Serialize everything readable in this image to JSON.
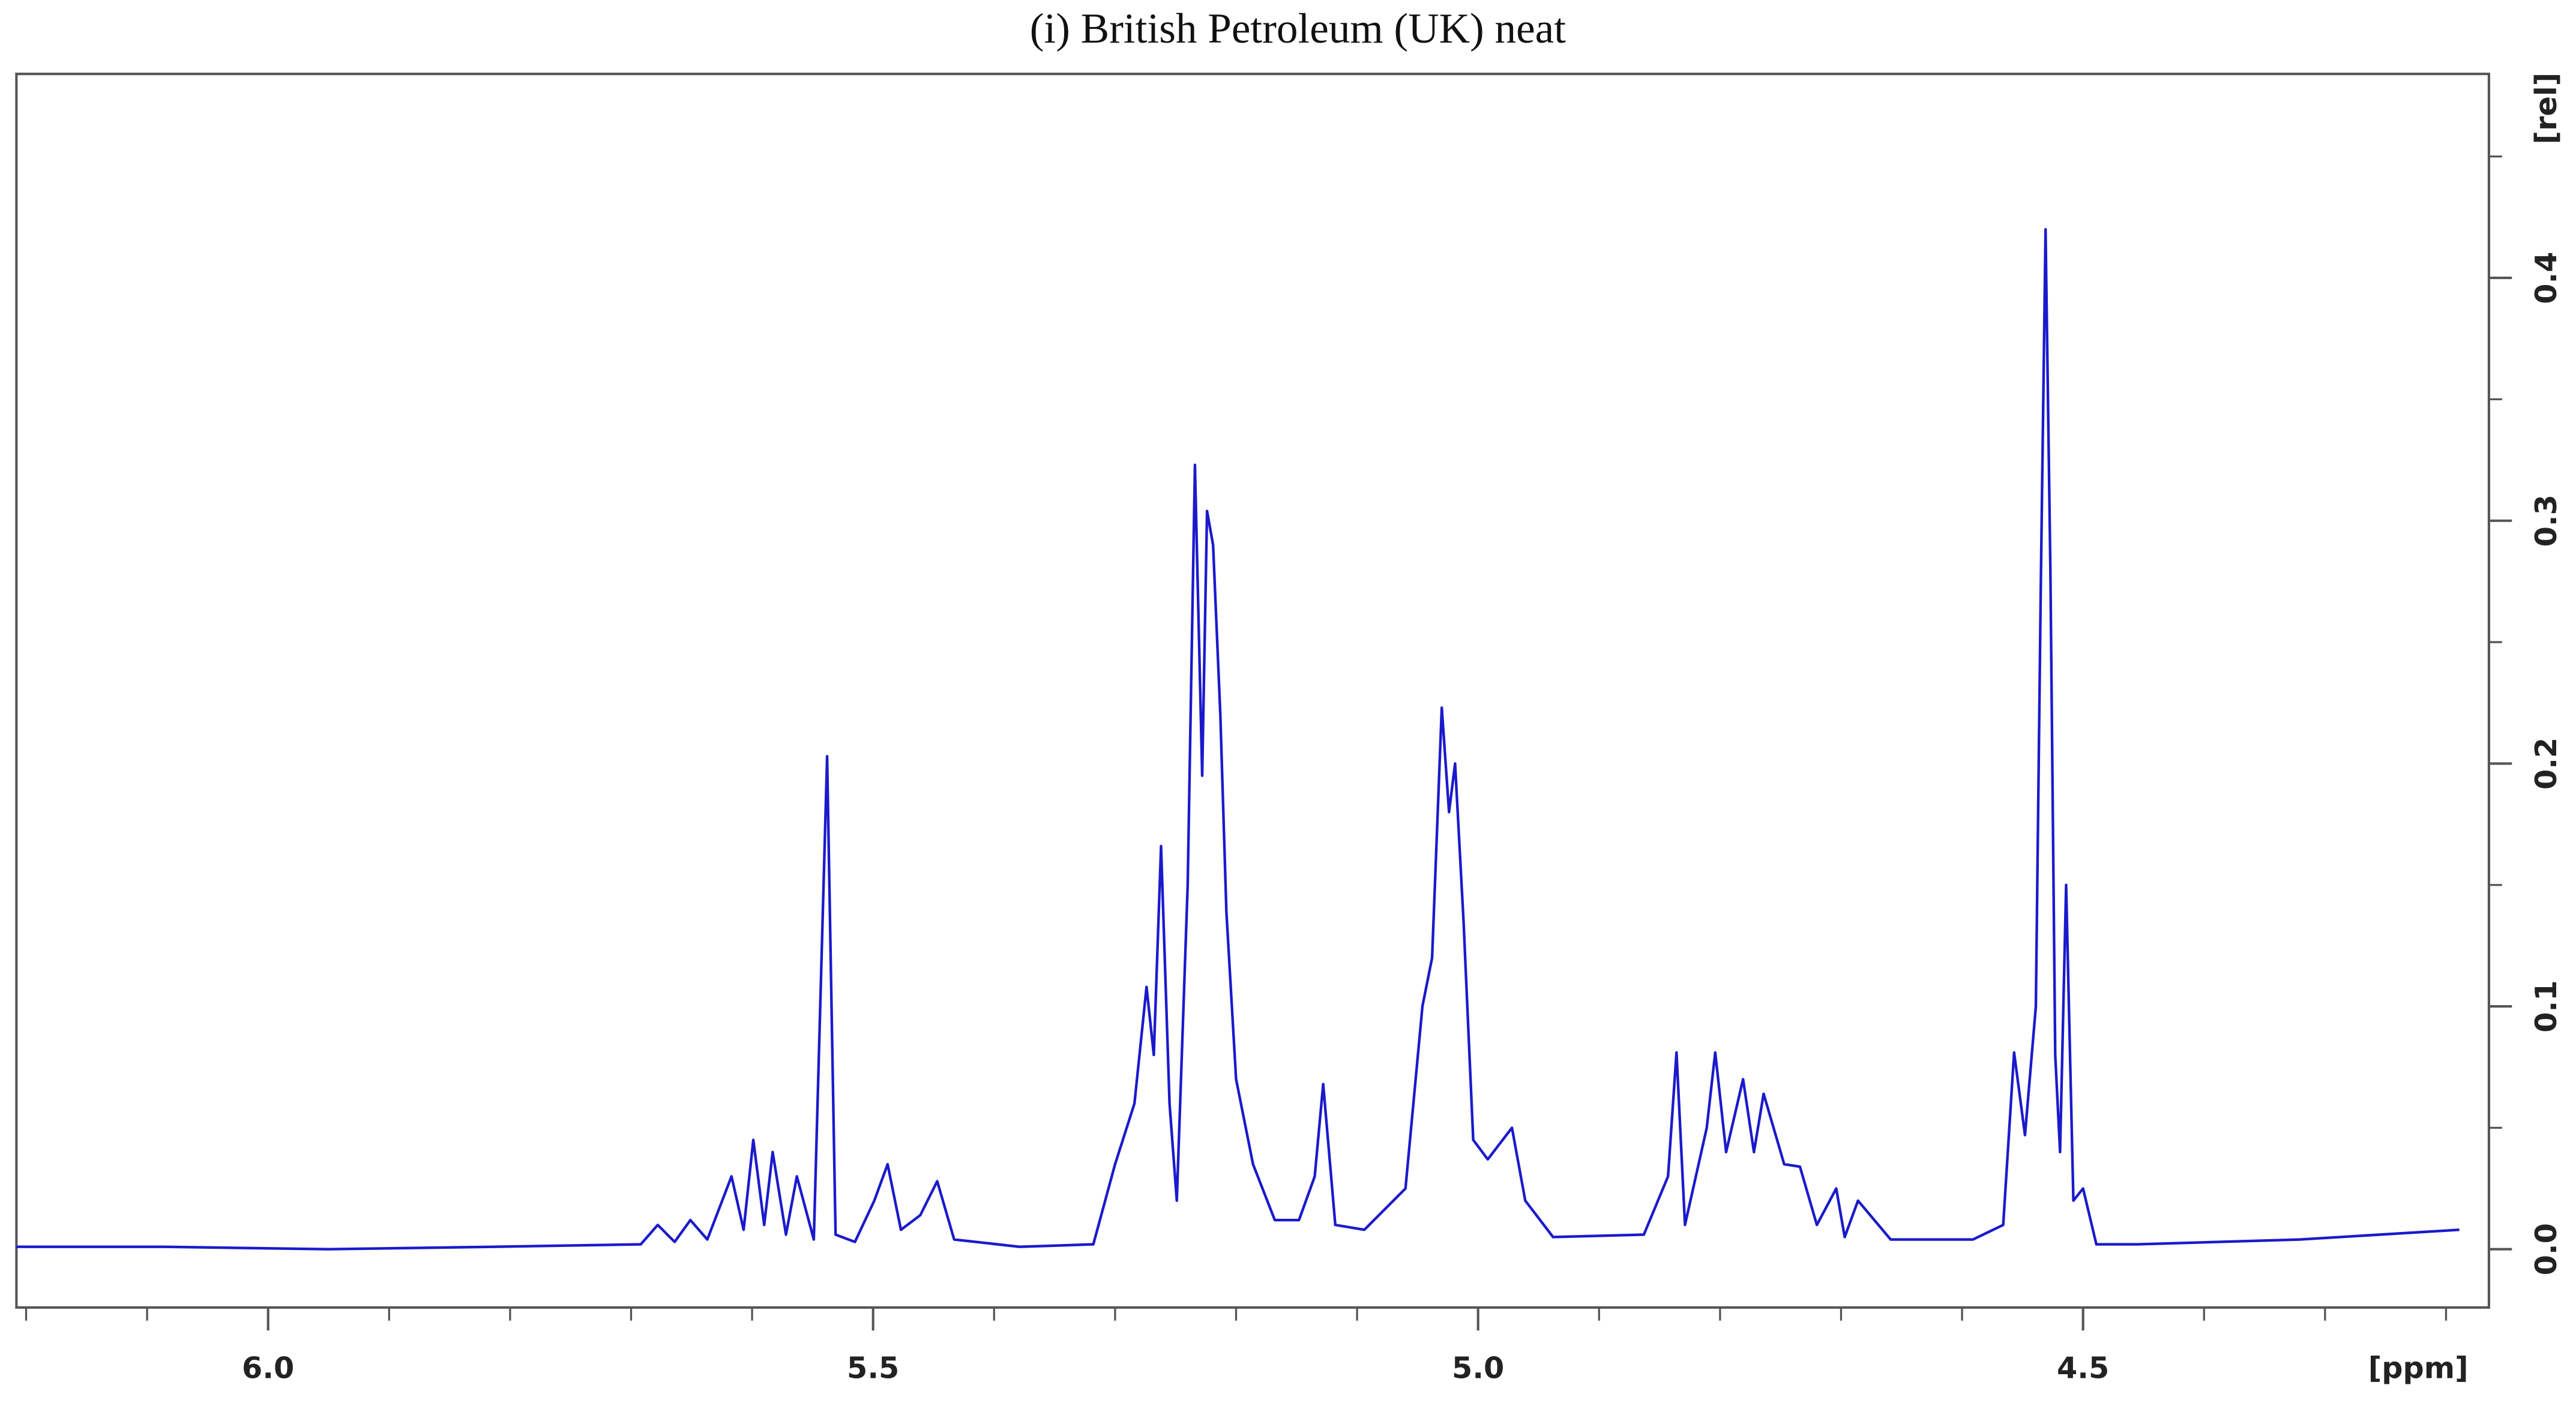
{
  "chart_data": {
    "type": "line",
    "title": "(i) British Petroleum (UK) neat",
    "xlabel": "[ppm]",
    "ylabel": "[rel]",
    "color": "#1a1acc",
    "reverse_x": true,
    "y_axis_side": "right",
    "xlim": [
      6.208,
      4.189
    ],
    "ylim": [
      -0.024,
      0.484
    ],
    "xticks": [
      {
        "value": 6,
        "label": "6.0"
      },
      5.5,
      {
        "value": 5,
        "label": "5.0"
      },
      4.5
    ],
    "xminorticks": [
      6.2,
      6.1,
      5.9,
      5.8,
      5.7,
      5.6,
      5.4,
      5.3,
      5.2,
      5.1,
      4.9,
      4.8,
      4.7,
      4.6,
      4.4,
      4.3,
      4.2
    ],
    "yticks": [
      {
        "value": 0,
        "label": "0.0"
      },
      0.1,
      0.2,
      0.3,
      0.4
    ],
    "yminorticks": [
      0.05,
      0.15,
      0.25,
      0.35,
      0.45
    ],
    "x": [
      6.208,
      6.086,
      5.95,
      5.814,
      5.692,
      5.678,
      5.664,
      5.651,
      5.637,
      5.617,
      5.607,
      5.599,
      5.59,
      5.583,
      5.572,
      5.563,
      5.549,
      5.538,
      5.531,
      5.515,
      5.499,
      5.488,
      5.477,
      5.461,
      5.447,
      5.433,
      5.379,
      5.318,
      5.3,
      5.284,
      5.274,
      5.268,
      5.262,
      5.255,
      5.249,
      5.24,
      5.234,
      5.228,
      5.224,
      5.219,
      5.213,
      5.208,
      5.2,
      5.186,
      5.168,
      5.148,
      5.135,
      5.128,
      5.118,
      5.094,
      5.06,
      5.046,
      5.038,
      5.03,
      5.024,
      5.019,
      5.012,
      5.004,
      4.992,
      4.972,
      4.961,
      4.938,
      4.863,
      4.843,
      4.836,
      4.829,
      4.811,
      4.804,
      4.795,
      4.781,
      4.772,
      4.764,
      4.747,
      4.734,
      4.72,
      4.704,
      4.697,
      4.686,
      4.659,
      4.591,
      4.566,
      4.557,
      4.548,
      4.539,
      4.535,
      4.531,
      4.527,
      4.523,
      4.519,
      4.514,
      4.508,
      4.5,
      4.489,
      4.455,
      4.321,
      4.189
    ],
    "values": [
      0.001,
      0.001,
      0.0,
      0.001,
      0.002,
      0.01,
      0.003,
      0.012,
      0.004,
      0.03,
      0.008,
      0.045,
      0.01,
      0.04,
      0.006,
      0.03,
      0.004,
      0.203,
      0.006,
      0.003,
      0.02,
      0.035,
      0.008,
      0.014,
      0.028,
      0.004,
      0.001,
      0.002,
      0.035,
      0.06,
      0.108,
      0.08,
      0.166,
      0.06,
      0.02,
      0.15,
      0.323,
      0.195,
      0.304,
      0.29,
      0.22,
      0.139,
      0.07,
      0.035,
      0.012,
      0.012,
      0.03,
      0.068,
      0.01,
      0.008,
      0.025,
      0.1,
      0.12,
      0.223,
      0.18,
      0.2,
      0.135,
      0.045,
      0.037,
      0.05,
      0.02,
      0.005,
      0.006,
      0.03,
      0.081,
      0.01,
      0.05,
      0.081,
      0.04,
      0.07,
      0.04,
      0.064,
      0.035,
      0.034,
      0.01,
      0.025,
      0.005,
      0.02,
      0.004,
      0.004,
      0.01,
      0.081,
      0.047,
      0.1,
      0.27,
      0.42,
      0.28,
      0.08,
      0.04,
      0.15,
      0.02,
      0.025,
      0.002,
      0.002,
      0.004,
      0.008
    ]
  }
}
